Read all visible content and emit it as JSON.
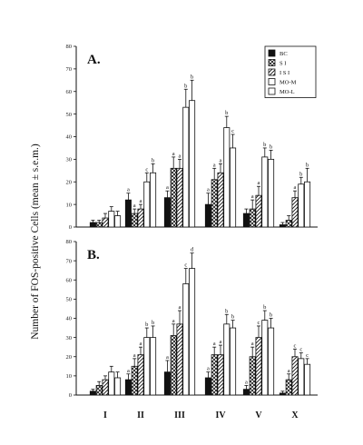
{
  "chart_data": {
    "type": "bar",
    "ylabel": "Number of FOS-positive Cells (mean ± s.e.m.)",
    "categories": [
      "I",
      "II",
      "III",
      "IV",
      "V",
      "X"
    ],
    "legend": {
      "placement": "top-right",
      "entries": [
        "BC",
        "S I",
        "I S I",
        "MO-M",
        "MO-L"
      ]
    },
    "series_styles": {
      "BC": "solid-black",
      "S I": "cross-hatch",
      "I S I": "diagonal-hatch",
      "MO-M": "white",
      "MO-L": "white"
    },
    "panels": [
      {
        "label": "A.",
        "ylim": [
          0,
          80
        ],
        "yticks": [
          "0",
          "10",
          "20",
          "30",
          "40",
          "50",
          "60",
          "70",
          "80"
        ],
        "series": [
          {
            "name": "BC",
            "values": [
              2,
              12,
              13,
              10,
              6,
              1
            ],
            "errors": [
              1,
              3,
              3,
              5,
              2,
              1
            ],
            "marks": [
              "",
              "a",
              "a",
              "a",
              "",
              ""
            ]
          },
          {
            "name": "S I",
            "values": [
              2,
              6,
              26,
              21,
              8,
              3
            ],
            "errors": [
              1,
              2,
              5,
              5,
              4,
              2
            ],
            "marks": [
              "",
              "a",
              "a",
              "a",
              "a",
              ""
            ]
          },
          {
            "name": "I S I",
            "values": [
              4,
              8,
              26,
              24,
              14,
              13
            ],
            "errors": [
              2,
              2,
              4,
              4,
              4,
              3
            ],
            "marks": [
              "",
              "a",
              "a",
              "a",
              "a",
              "a"
            ]
          },
          {
            "name": "MO-M",
            "values": [
              7,
              20,
              53,
              44,
              31,
              19
            ],
            "errors": [
              2,
              4,
              8,
              5,
              4,
              3
            ],
            "marks": [
              "",
              "c",
              "b",
              "b",
              "b",
              "b"
            ]
          },
          {
            "name": "MO-L",
            "values": [
              5,
              24,
              56,
              35,
              30,
              20
            ],
            "errors": [
              2,
              4,
              9,
              6,
              4,
              6
            ],
            "marks": [
              "",
              "b",
              "b",
              "c",
              "b",
              "b"
            ]
          }
        ]
      },
      {
        "label": "B.",
        "ylim": [
          0,
          80
        ],
        "yticks": [
          "0",
          "10",
          "20",
          "30",
          "40",
          "50",
          "60",
          "70",
          "80"
        ],
        "series": [
          {
            "name": "BC",
            "values": [
              2,
              8,
              12,
              9,
              3,
              1
            ],
            "errors": [
              1,
              3,
              6,
              3,
              2,
              1
            ],
            "marks": [
              "",
              "a",
              "a",
              "a",
              "a",
              ""
            ]
          },
          {
            "name": "S I",
            "values": [
              5,
              15,
              31,
              21,
              20,
              8
            ],
            "errors": [
              2,
              4,
              6,
              4,
              5,
              3
            ],
            "marks": [
              "",
              "a",
              "a",
              "a",
              "a",
              "a"
            ]
          },
          {
            "name": "I S I",
            "values": [
              8,
              21,
              37,
              21,
              30,
              20
            ],
            "errors": [
              2,
              4,
              7,
              5,
              6,
              4
            ],
            "marks": [
              "",
              "a",
              "a",
              "a",
              "c",
              "c"
            ]
          },
          {
            "name": "MO-M",
            "values": [
              12,
              30,
              58,
              37,
              39,
              19
            ],
            "errors": [
              3,
              5,
              8,
              5,
              5,
              3
            ],
            "marks": [
              "",
              "b",
              "c",
              "b",
              "b",
              "c"
            ]
          },
          {
            "name": "MO-L",
            "values": [
              9,
              30,
              66,
              35,
              35,
              16
            ],
            "errors": [
              3,
              6,
              8,
              4,
              5,
              3
            ],
            "marks": [
              "",
              "b",
              "d",
              "b",
              "b",
              "c"
            ]
          }
        ]
      }
    ]
  }
}
